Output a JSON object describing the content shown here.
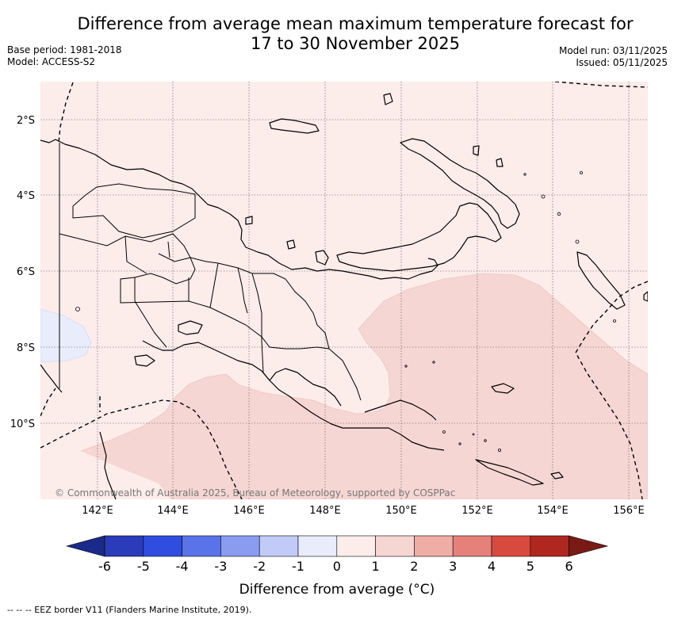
{
  "title_line1": "Difference from average mean maximum temperature forecast for",
  "title_line2": "17 to 30 November 2025",
  "base_period": "Base period: 1981-2018",
  "model": "Model: ACCESS-S2",
  "model_run": "Model run: 03/11/2025",
  "issued": "Issued: 05/11/2025",
  "map": {
    "lat_labels": [
      "2°S",
      "4°S",
      "6°S",
      "8°S",
      "10°S"
    ],
    "lon_labels": [
      "142°E",
      "144°E",
      "146°E",
      "148°E",
      "150°E",
      "152°E",
      "154°E",
      "156°E"
    ],
    "copyright": "© Commonwealth of Australia 2025, Bureau of Meteorology, supported by COSPPac"
  },
  "colorbar": {
    "ticks": [
      "-6",
      "-5",
      "-4",
      "-3",
      "-2",
      "-1",
      "0",
      "1",
      "2",
      "3",
      "4",
      "5",
      "6"
    ],
    "colors": [
      "#1a2a8a",
      "#2a3cba",
      "#2f4ddf",
      "#5a73e8",
      "#8a9cf0",
      "#c2cbf7",
      "#e8ecfb",
      "#fcecea",
      "#f6d6d3",
      "#efada6",
      "#e6817a",
      "#d94a3e",
      "#b0271f",
      "#7a1a15"
    ],
    "title": "Difference from average (°C)"
  },
  "footer": "--  --  -- EEZ border V11 (Flanders Marine Institute, 2019)."
}
